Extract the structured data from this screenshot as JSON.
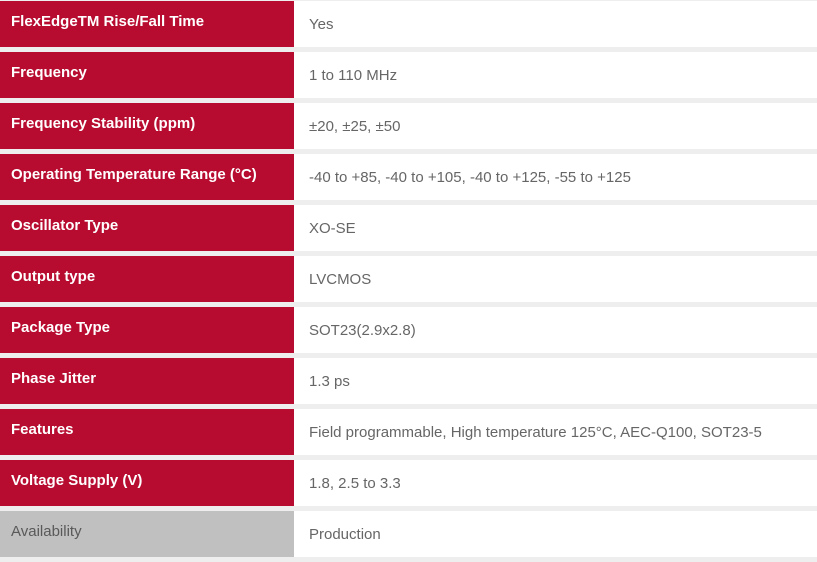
{
  "colors": {
    "label_bg": "#b70b2f",
    "availability_bg": "#c0c0c0",
    "value_bg": "#ffffff",
    "gap": "#eeeeee"
  },
  "rows": [
    {
      "label": "FlexEdgeTM Rise/Fall Time",
      "value": "Yes"
    },
    {
      "label": "Frequency",
      "value": "1 to 110 MHz"
    },
    {
      "label": "Frequency Stability (ppm)",
      "value": "±20, ±25, ±50"
    },
    {
      "label": "Operating Temperature Range (°C)",
      "value": "-40 to +85, -40 to +105, -40 to +125, -55 to +125"
    },
    {
      "label": "Oscillator Type",
      "value": "XO-SE"
    },
    {
      "label": "Output type",
      "value": "LVCMOS"
    },
    {
      "label": "Package Type",
      "value": "SOT23(2.9x2.8)"
    },
    {
      "label": "Phase Jitter",
      "value": "1.3 ps"
    },
    {
      "label": "Features",
      "value": "Field programmable, High temperature 125°C, AEC-Q100, SOT23-5"
    },
    {
      "label": "Voltage Supply (V)",
      "value": "1.8, 2.5 to 3.3"
    },
    {
      "label": "Availability",
      "value": "Production"
    }
  ]
}
